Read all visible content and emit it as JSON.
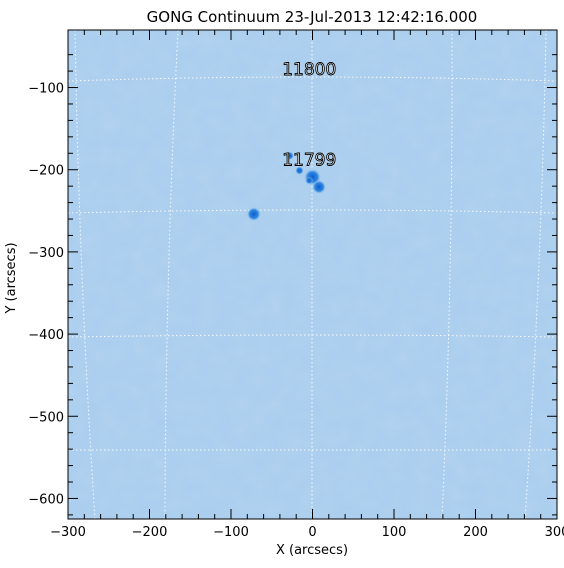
{
  "title": "GONG Continuum 23-Jul-2013 12:42:16.000",
  "axes": {
    "xlabel": "X (arcsecs)",
    "ylabel": "Y (arcsecs)",
    "xlim": [
      -300,
      300
    ],
    "ylim": [
      -625,
      -30
    ],
    "xticks": [
      -300,
      -200,
      -100,
      0,
      100,
      200,
      300
    ],
    "xtick_labels": [
      "−300",
      "−200",
      "−100",
      "0",
      "100",
      "200",
      "300"
    ],
    "yticks": [
      -100,
      -200,
      -300,
      -400,
      -500,
      -600
    ],
    "ytick_labels": [
      "−100",
      "−200",
      "−300",
      "−400",
      "−500",
      "−600"
    ]
  },
  "colors": {
    "background": "#a9cdee",
    "spot": "#1a73d9",
    "grid": "#ffffff",
    "frame": "#000000"
  },
  "regions": [
    {
      "id": "11800",
      "label": "11800",
      "x": -4,
      "y": -85
    },
    {
      "id": "11799",
      "label": "11799",
      "x": -4,
      "y": -195
    }
  ],
  "sunspots": [
    {
      "x": -72,
      "y": -254,
      "r": 5
    },
    {
      "x": 0,
      "y": -209,
      "r": 6
    },
    {
      "x": 8,
      "y": -221,
      "r": 5
    },
    {
      "x": -28,
      "y": -183,
      "r": 3
    },
    {
      "x": -16,
      "y": -201,
      "r": 3
    },
    {
      "x": -4,
      "y": -213,
      "r": 2
    }
  ]
}
